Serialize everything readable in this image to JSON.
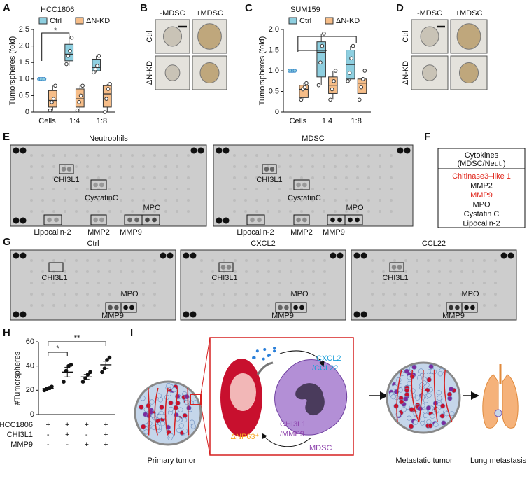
{
  "panel_labels": [
    "A",
    "B",
    "C",
    "D",
    "E",
    "F",
    "G",
    "H",
    "I"
  ],
  "chart_data": [
    {
      "type": "box",
      "title": "HCC1806",
      "ylabel": "Tumorspheres (fold)",
      "categories": [
        "Cells",
        "1:4",
        "1:8"
      ],
      "ylim": [
        0,
        2.5
      ],
      "yticks": [
        0,
        0.5,
        {
          "value": 1,
          "label": "1.0"
        },
        1.5,
        {
          "value": 2,
          "label": "2.0"
        },
        2.5
      ],
      "series": [
        {
          "name": "Ctrl",
          "color": "#8ecfe0",
          "boxes": [
            null,
            {
              "min": 1.4,
              "q1": 1.55,
              "median": 1.75,
              "q3": 2.05,
              "max": 2.25
            },
            {
              "min": 1.2,
              "q1": 1.25,
              "median": 1.35,
              "q3": 1.6,
              "max": 1.7
            }
          ],
          "points": [
            [
              1,
              1,
              1,
              1
            ],
            [
              1.45,
              1.7,
              1.85,
              2.25
            ],
            [
              1.2,
              1.3,
              1.4,
              1.7
            ]
          ]
        },
        {
          "name": "ΔN-KD",
          "color": "#f6bd88",
          "boxes": [
            {
              "min": 0.05,
              "q1": 0.15,
              "median": 0.35,
              "q3": 0.65,
              "max": 0.8
            },
            {
              "min": 0.05,
              "q1": 0.15,
              "median": 0.4,
              "q3": 0.7,
              "max": 0.8
            },
            {
              "min": 0.0,
              "q1": 0.15,
              "median": 0.55,
              "q3": 0.8,
              "max": 0.85
            }
          ],
          "points": [
            [
              0.05,
              0.3,
              0.4,
              0.8
            ],
            [
              0.05,
              0.3,
              0.5,
              0.8
            ],
            [
              0.0,
              0.4,
              0.7,
              0.85
            ]
          ]
        }
      ],
      "annotations": [
        "*"
      ]
    },
    {
      "type": "box",
      "title": "SUM159",
      "ylabel": "Tumorspheres (fold)",
      "categories": [
        "Cells",
        "1:4",
        "1:8"
      ],
      "ylim": [
        0,
        2.0
      ],
      "yticks": [
        0,
        0.5,
        {
          "value": 1,
          "label": "1.0"
        },
        1.5,
        {
          "value": 2,
          "label": "2.0"
        }
      ],
      "series": [
        {
          "name": "Ctrl",
          "color": "#8ecfe0",
          "boxes": [
            null,
            {
              "min": 0.65,
              "q1": 0.85,
              "median": 1.45,
              "q3": 1.7,
              "max": 1.9
            },
            {
              "min": 0.75,
              "q1": 0.8,
              "median": 1.15,
              "q3": 1.5,
              "max": 1.6
            }
          ],
          "points": [
            [
              1,
              1,
              1,
              1
            ],
            [
              0.65,
              1.2,
              1.6,
              1.9
            ],
            [
              0.75,
              0.95,
              1.3,
              1.6
            ]
          ]
        },
        {
          "name": "ΔN-KD",
          "color": "#f6bd88",
          "boxes": [
            {
              "min": 0.3,
              "q1": 0.35,
              "median": 0.55,
              "q3": 0.65,
              "max": 0.7
            },
            {
              "min": 0.3,
              "q1": 0.45,
              "median": 0.65,
              "q3": 0.85,
              "max": 1.0
            },
            {
              "min": 0.3,
              "q1": 0.45,
              "median": 0.7,
              "q3": 0.8,
              "max": 1.0
            }
          ],
          "points": [
            [
              0.3,
              0.55,
              0.6,
              0.7
            ],
            [
              0.3,
              0.55,
              0.75,
              1.0
            ],
            [
              0.3,
              0.6,
              0.8,
              1.0
            ]
          ]
        }
      ]
    },
    {
      "type": "dot",
      "ylabel": "#Tumorspheres",
      "categories": [
        null,
        null,
        null,
        null
      ],
      "ylim": [
        0,
        60
      ],
      "yticks": [
        0,
        20,
        40,
        60
      ],
      "series": [
        {
          "color": "#111111",
          "values": [
            21.5,
            35,
            31,
            41
          ],
          "errors": [
            1,
            4,
            2,
            3
          ],
          "points": [
            [
              20,
              21,
              22,
              23
            ],
            [
              27,
              36,
              40,
              41
            ],
            [
              27,
              30,
              33,
              35
            ],
            [
              35,
              38,
              45,
              47
            ]
          ]
        }
      ],
      "conditions": [
        {
          "name": "HCC1806",
          "values": [
            "+",
            "+",
            "+",
            "+"
          ]
        },
        {
          "name": "CHI3L1",
          "values": [
            "-",
            "+",
            "-",
            "+"
          ]
        },
        {
          "name": "MMP9",
          "values": [
            "-",
            "-",
            "+",
            "+"
          ]
        }
      ],
      "annotations": [
        "*",
        "**"
      ]
    }
  ],
  "panel_b": {
    "columns": [
      "-MDSC",
      "+MDSC"
    ],
    "rows": [
      "Ctrl",
      "ΔN-KD"
    ]
  },
  "panel_d": {
    "columns": [
      "-MDSC",
      "+MDSC"
    ],
    "rows": [
      "Ctrl",
      "ΔN-KD"
    ]
  },
  "panel_e": {
    "blots": [
      {
        "title": "Neutrophils",
        "spots": [
          "CHI3L1",
          "CystatinC",
          "MPO",
          "Lipocalin-2",
          "MMP2",
          "MMP9"
        ]
      },
      {
        "title": "MDSC",
        "spots": [
          "CHI3L1",
          "CystatinC",
          "MPO",
          "Lipocalin-2",
          "MMP2",
          "MMP9"
        ]
      }
    ]
  },
  "panel_f": {
    "header": [
      "Cytokines",
      "(MDSC/Neut.)"
    ],
    "rows": [
      {
        "text": "Chitinase3–like 1",
        "color": "#e0261b"
      },
      {
        "text": "MMP2",
        "color": "#111111"
      },
      {
        "text": "MMP9",
        "color": "#e0261b"
      },
      {
        "text": "MPO",
        "color": "#111111"
      },
      {
        "text": "Cystatin C",
        "color": "#111111"
      },
      {
        "text": "Lipocalin-2",
        "color": "#111111"
      }
    ]
  },
  "panel_g": {
    "blots": [
      {
        "title": "Ctrl",
        "spots": [
          "CHI3L1",
          "MPO",
          "MMP9"
        ]
      },
      {
        "title": "CXCL2",
        "spots": [
          "CHI3L1",
          "MPO",
          "MMP9"
        ]
      },
      {
        "title": "CCL22",
        "spots": [
          "CHI3L1",
          "MPO",
          "MMP9"
        ]
      }
    ]
  },
  "panel_i": {
    "primary": "Primary tumor",
    "chemokine1": "CXCL2",
    "chemokine2": "/CCL22",
    "tumor_cell": "ΔNP63⁺",
    "factor1": "CHI3L1",
    "factor2": "/MMP9",
    "mdsc": "MDSC",
    "metastatic": "Metastatic tumor",
    "lung": "Lung metastasis"
  }
}
